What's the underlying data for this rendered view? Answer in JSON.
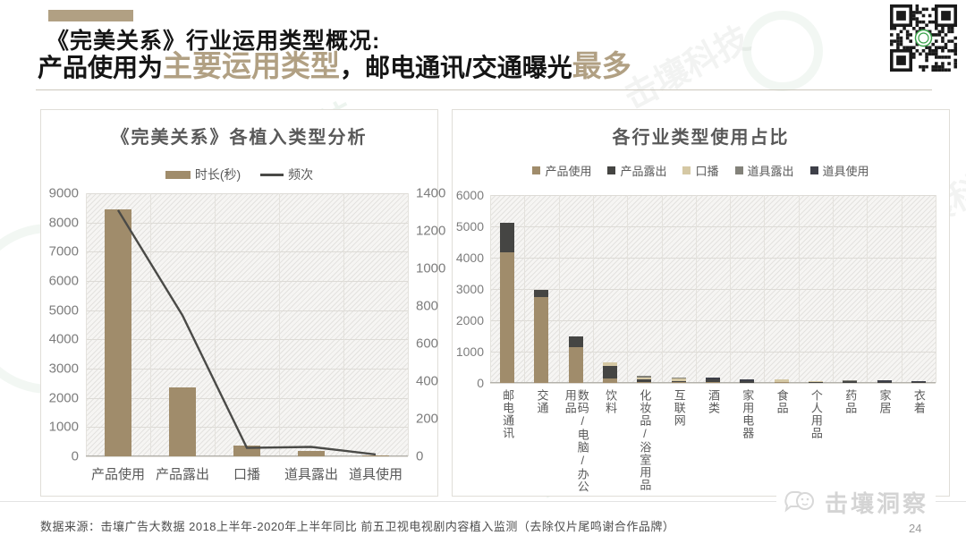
{
  "header": {
    "title_line1": "《完美关系》行业运用类型概况:",
    "title_line2_parts": [
      {
        "text": "产品使用为",
        "highlight": false
      },
      {
        "text": "主要运用类型",
        "highlight": true
      },
      {
        "text": "，邮电通讯/交通曝光",
        "highlight": false
      },
      {
        "text": "最多",
        "highlight": true
      }
    ]
  },
  "colors": {
    "accent_tan": "#b1a083",
    "bar_tan": "#a08c6b",
    "dark_charcoal": "#454543",
    "beige": "#d5c8a4",
    "gray": "#83827a",
    "dark_slate": "#3e4049",
    "line_dark": "#4a4a47",
    "title_gray": "#595959"
  },
  "chart_data": [
    {
      "type": "bar+line",
      "title": "《完美关系》各植入类型分析",
      "categories": [
        "产品使用",
        "产品露出",
        "口播",
        "道具露出",
        "道具使用"
      ],
      "bar_series": {
        "name": "时长(秒)",
        "axis": "left",
        "color": "#a08c6b",
        "values": [
          8450,
          2350,
          380,
          180,
          30
        ]
      },
      "line_series": {
        "name": "频次",
        "axis": "right",
        "color": "#4a4a47",
        "values": [
          1310,
          750,
          45,
          50,
          10
        ]
      },
      "y_left": {
        "min": 0,
        "max": 9000,
        "ticks": [
          9000,
          8000,
          7000,
          6000,
          5000,
          4000,
          3000,
          2000,
          1000,
          0
        ]
      },
      "y_right": {
        "min": 0,
        "max": 1400,
        "ticks": [
          1400,
          1200,
          1000,
          800,
          600,
          400,
          200,
          0
        ]
      },
      "grid": true,
      "legend_position": "top"
    },
    {
      "type": "stacked_bar",
      "title": "各行业类型使用占比",
      "categories": [
        "邮电通讯",
        "交通",
        "数码/电脑/办公用品",
        "饮料",
        "化妆品/浴室用品",
        "互联网",
        "酒类",
        "家用电器",
        "食品",
        "个人用品",
        "药品",
        "家居",
        "衣着"
      ],
      "series": [
        {
          "name": "产品使用",
          "color": "#a08c6b",
          "values": [
            4170,
            2730,
            1130,
            150,
            40,
            20,
            20,
            10,
            15,
            10,
            10,
            10,
            5
          ]
        },
        {
          "name": "产品露出",
          "color": "#454543",
          "values": [
            940,
            250,
            370,
            400,
            80,
            30,
            100,
            55,
            20,
            10,
            45,
            30,
            22
          ]
        },
        {
          "name": "口播",
          "color": "#d5c8a4",
          "values": [
            0,
            0,
            0,
            120,
            50,
            90,
            0,
            0,
            85,
            30,
            0,
            0,
            0
          ]
        },
        {
          "name": "道具露出",
          "color": "#83827a",
          "values": [
            0,
            0,
            0,
            0,
            60,
            10,
            0,
            0,
            0,
            0,
            15,
            0,
            0
          ]
        },
        {
          "name": "道具使用",
          "color": "#3e4049",
          "values": [
            0,
            0,
            0,
            0,
            0,
            0,
            20,
            15,
            0,
            0,
            0,
            5,
            3
          ]
        }
      ],
      "y": {
        "min": 0,
        "max": 6000,
        "ticks": [
          6000,
          5000,
          4000,
          3000,
          2000,
          1000,
          0
        ]
      },
      "grid": true,
      "legend_position": "top"
    }
  ],
  "footer": {
    "source_text": "数据来源：击壤广告大数据  2018上半年-2020年上半年同比 前五卫视电视剧内容植入监测（去除仅片尾鸣谢合作品牌）",
    "brand": "击壤洞察",
    "page_number": "24"
  },
  "watermark": {
    "brand": "击壤科技"
  }
}
